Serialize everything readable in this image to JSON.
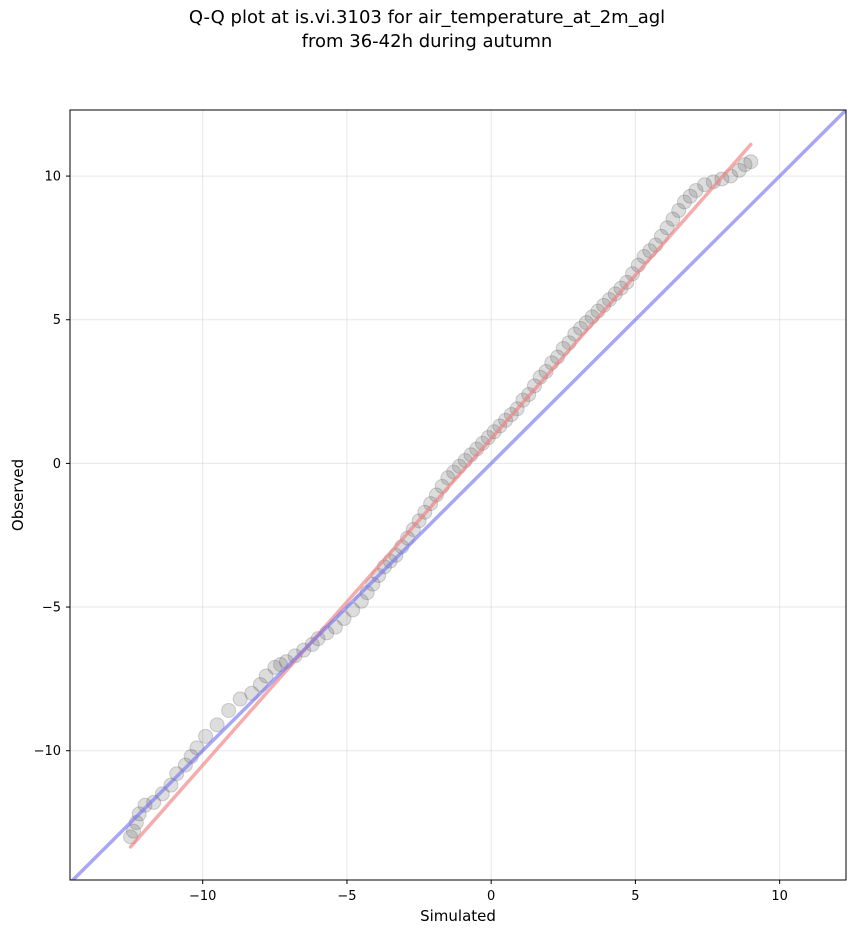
{
  "chart_data": {
    "type": "scatter",
    "title_line1": "Q-Q plot at is.vi.3103 for air_temperature_at_2m_agl",
    "title_line2": "from 36-42h during autumn",
    "xlabel": "Simulated",
    "ylabel": "Observed",
    "xlim": [
      -14.6,
      12.3
    ],
    "ylim": [
      -14.5,
      12.3
    ],
    "xticks": [
      -10,
      -5,
      0,
      5,
      10
    ],
    "yticks": [
      -10,
      -5,
      0,
      5,
      10
    ],
    "xtick_labels": [
      "−10",
      "−5",
      "0",
      "5",
      "10"
    ],
    "ytick_labels": [
      "−10",
      "−5",
      "0",
      "5",
      "10"
    ],
    "grid": true,
    "colors": {
      "points": "#555555",
      "fit_line": "#f08080",
      "identity_line": "#7878f0",
      "fit_overlay": "#8b0000",
      "identity_overlay": "#00008b"
    },
    "lines": [
      {
        "name": "",
        "role": "fit",
        "x": [
          -12.5,
          9.0
        ],
        "y": [
          -13.35,
          11.1
        ]
      },
      {
        "name": "",
        "role": "identity",
        "x": [
          -14.6,
          12.3
        ],
        "y": [
          -14.6,
          12.3
        ]
      }
    ],
    "series": [
      {
        "name": "",
        "x": [
          -12.5,
          -12.4,
          -12.3,
          -12.2,
          -12.0,
          -11.7,
          -11.4,
          -11.1,
          -10.9,
          -10.6,
          -10.4,
          -10.2,
          -9.9,
          -9.5,
          -9.1,
          -8.7,
          -8.3,
          -8.0,
          -7.8,
          -7.5,
          -7.3,
          -7.1,
          -6.8,
          -6.5,
          -6.2,
          -6.0,
          -5.7,
          -5.4,
          -5.1,
          -4.8,
          -4.5,
          -4.3,
          -4.1,
          -3.9,
          -3.7,
          -3.5,
          -3.3,
          -3.1,
          -2.9,
          -2.7,
          -2.5,
          -2.3,
          -2.1,
          -1.9,
          -1.7,
          -1.5,
          -1.3,
          -1.1,
          -0.9,
          -0.7,
          -0.5,
          -0.3,
          -0.1,
          0.1,
          0.3,
          0.5,
          0.7,
          0.9,
          1.1,
          1.3,
          1.5,
          1.7,
          1.9,
          2.1,
          2.3,
          2.5,
          2.7,
          2.9,
          3.1,
          3.3,
          3.5,
          3.7,
          3.9,
          4.1,
          4.3,
          4.5,
          4.7,
          4.9,
          5.1,
          5.3,
          5.5,
          5.7,
          5.9,
          6.1,
          6.3,
          6.5,
          6.7,
          6.9,
          7.1,
          7.4,
          7.7,
          8.0,
          8.3,
          8.6,
          8.8,
          9.0
        ],
        "y": [
          -13.0,
          -12.8,
          -12.5,
          -12.2,
          -11.9,
          -11.8,
          -11.5,
          -11.2,
          -10.8,
          -10.5,
          -10.2,
          -9.9,
          -9.5,
          -9.1,
          -8.6,
          -8.2,
          -8.0,
          -7.7,
          -7.4,
          -7.1,
          -7.0,
          -6.9,
          -6.7,
          -6.5,
          -6.3,
          -6.1,
          -5.9,
          -5.7,
          -5.4,
          -5.1,
          -4.8,
          -4.5,
          -4.2,
          -3.9,
          -3.6,
          -3.4,
          -3.2,
          -2.9,
          -2.6,
          -2.3,
          -2.0,
          -1.7,
          -1.4,
          -1.1,
          -0.8,
          -0.5,
          -0.3,
          -0.1,
          0.1,
          0.3,
          0.5,
          0.7,
          0.9,
          1.1,
          1.3,
          1.5,
          1.7,
          1.9,
          2.2,
          2.4,
          2.7,
          3.0,
          3.2,
          3.5,
          3.7,
          4.0,
          4.2,
          4.5,
          4.7,
          4.9,
          5.1,
          5.3,
          5.5,
          5.7,
          5.9,
          6.1,
          6.3,
          6.6,
          6.9,
          7.2,
          7.4,
          7.6,
          7.9,
          8.2,
          8.5,
          8.8,
          9.1,
          9.3,
          9.5,
          9.7,
          9.8,
          9.9,
          10.0,
          10.2,
          10.4,
          10.5
        ]
      }
    ]
  }
}
